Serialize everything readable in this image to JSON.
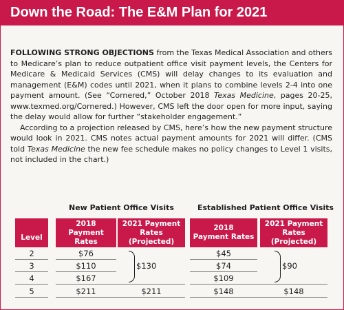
{
  "header": {
    "title": "Down the Road: The E&M Plan for 2021"
  },
  "body": {
    "lead": "FOLLOWING STRONG OBJECTIONS",
    "p1_rest": " from the Texas Medical Association and others to Medicare’s plan to reduce outpatient office visit payment levels, the Centers for Medicare & Medicaid Services (CMS) will delay changes to its evaluation and management (E&M) codes until 2021, when it plans to combine levels 2-4 into one payment amount. (See “Cornered,” October 2018 ",
    "p1_italic": "Texas Medicine",
    "p1_end": ", pages 20-25, www.texmed.org/Cornered.) However, CMS left the door open for more input, saying the delay would allow for further “stakeholder engagement.”",
    "p2_start": "According to a projection released by CMS, here’s how the new payment structure would look in 2021. CMS notes actual payment amounts for 2021 will differ. (CMS told ",
    "p2_italic": "Texas Medicine",
    "p2_end": " the new fee schedule makes no policy changes to Level 1 visits, not included in the chart.)"
  },
  "table": {
    "new_title": "New Patient Office Visits",
    "est_title": "Established Patient Office Visits",
    "col_level": "Level",
    "col_2018": [
      "2018",
      "Payment Rates"
    ],
    "col_2021": [
      "2021 Payment",
      "Rates (Projected)"
    ],
    "levels": [
      "2",
      "3",
      "4",
      "5"
    ],
    "new_2018": [
      "$76",
      "$110",
      "$167",
      "$211"
    ],
    "new_2021_combined": "$130",
    "new_2021_l5": "$211",
    "est_2018": [
      "$45",
      "$74",
      "$109",
      "$148"
    ],
    "est_2021_combined": "$90",
    "est_2021_l5": "$148"
  },
  "colors": {
    "accent": "#c8194a",
    "background": "#f7f6f2"
  }
}
